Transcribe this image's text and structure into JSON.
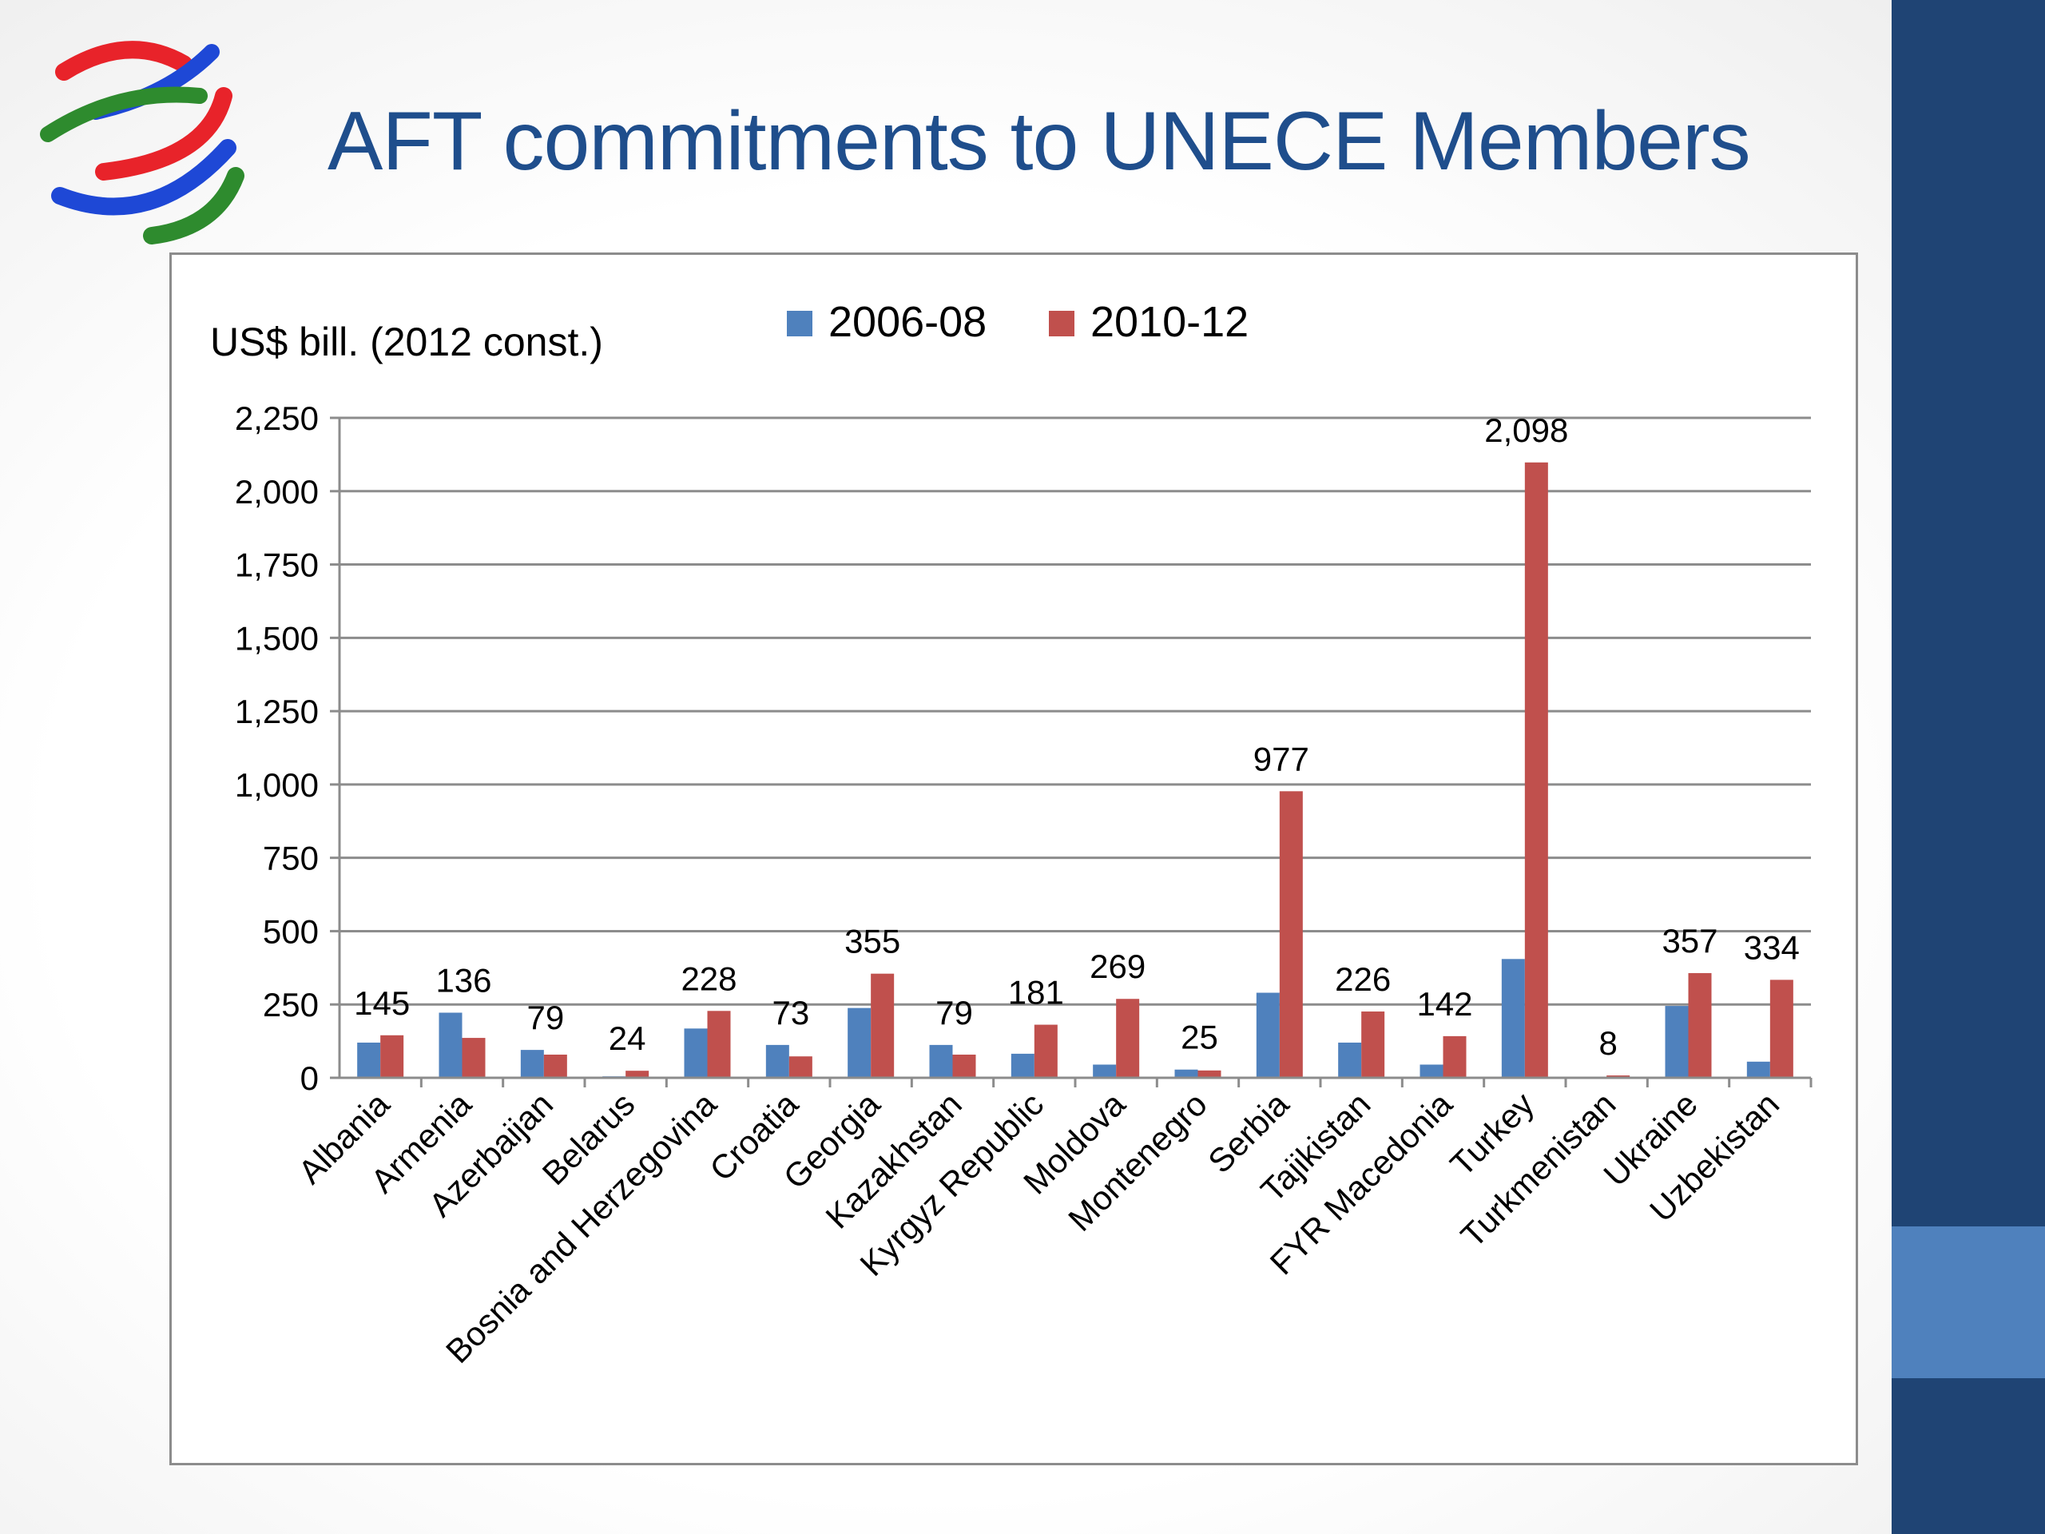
{
  "slide": {
    "title": "AFT commitments to UNECE Members",
    "logo_icon": "wto-logo-icon"
  },
  "chart_data": {
    "type": "bar",
    "title": "",
    "ylabel": "US$ bill. (2012 const.)",
    "xlabel": "",
    "ylim": [
      0,
      2250
    ],
    "yticks": [
      0,
      250,
      500,
      750,
      1000,
      1250,
      1500,
      1750,
      2000,
      2250
    ],
    "ytick_labels": [
      "0",
      "250",
      "500",
      "750",
      "1,000",
      "1,250",
      "1,500",
      "1,750",
      "2,000",
      "2,250"
    ],
    "grid": true,
    "legend_position": "top-center",
    "categories": [
      "Albania",
      "Armenia",
      "Azerbaijan",
      "Belarus",
      "Bosnia and Herzegovina",
      "Croatia",
      "Georgia",
      "Kazakhstan",
      "Kyrgyz Republic",
      "Moldova",
      "Montenegro",
      "Serbia",
      "Tajikistan",
      "FYR Macedonia",
      "Turkey",
      "Turkmenistan",
      "Ukraine",
      "Uzbekistan"
    ],
    "series": [
      {
        "name": "2006-08",
        "color": "#4f81bd",
        "values": [
          120,
          222,
          95,
          5,
          168,
          112,
          238,
          112,
          82,
          45,
          28,
          290,
          120,
          45,
          405,
          1,
          245,
          55
        ]
      },
      {
        "name": "2010-12",
        "color": "#c0504d",
        "values": [
          145,
          136,
          79,
          24,
          228,
          73,
          355,
          79,
          181,
          269,
          25,
          977,
          226,
          142,
          2098,
          8,
          357,
          334
        ],
        "data_labels": [
          "145",
          "136",
          "79",
          "24",
          "228",
          "73",
          "355",
          "79",
          "181",
          "269",
          "25",
          "977",
          "226",
          "142",
          "2,098",
          "8",
          "357",
          "334"
        ]
      }
    ]
  }
}
